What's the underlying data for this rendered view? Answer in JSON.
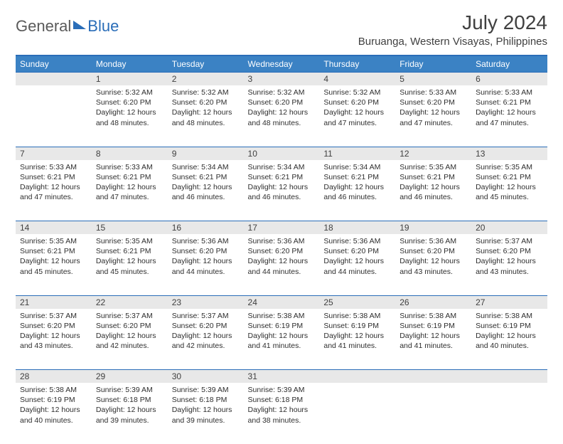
{
  "brand": {
    "part1": "General",
    "part2": "Blue"
  },
  "title": "July 2024",
  "location": "Buruanga, Western Visayas, Philippines",
  "colors": {
    "header_bg": "#3b82c4",
    "header_border": "#2a6db8",
    "daynum_bg": "#e8e8e8",
    "text": "#404040"
  },
  "weekdays": [
    "Sunday",
    "Monday",
    "Tuesday",
    "Wednesday",
    "Thursday",
    "Friday",
    "Saturday"
  ],
  "weeks": [
    [
      null,
      {
        "n": "1",
        "sr": "5:32 AM",
        "ss": "6:20 PM",
        "dl": "12 hours and 48 minutes."
      },
      {
        "n": "2",
        "sr": "5:32 AM",
        "ss": "6:20 PM",
        "dl": "12 hours and 48 minutes."
      },
      {
        "n": "3",
        "sr": "5:32 AM",
        "ss": "6:20 PM",
        "dl": "12 hours and 48 minutes."
      },
      {
        "n": "4",
        "sr": "5:32 AM",
        "ss": "6:20 PM",
        "dl": "12 hours and 47 minutes."
      },
      {
        "n": "5",
        "sr": "5:33 AM",
        "ss": "6:20 PM",
        "dl": "12 hours and 47 minutes."
      },
      {
        "n": "6",
        "sr": "5:33 AM",
        "ss": "6:21 PM",
        "dl": "12 hours and 47 minutes."
      }
    ],
    [
      {
        "n": "7",
        "sr": "5:33 AM",
        "ss": "6:21 PM",
        "dl": "12 hours and 47 minutes."
      },
      {
        "n": "8",
        "sr": "5:33 AM",
        "ss": "6:21 PM",
        "dl": "12 hours and 47 minutes."
      },
      {
        "n": "9",
        "sr": "5:34 AM",
        "ss": "6:21 PM",
        "dl": "12 hours and 46 minutes."
      },
      {
        "n": "10",
        "sr": "5:34 AM",
        "ss": "6:21 PM",
        "dl": "12 hours and 46 minutes."
      },
      {
        "n": "11",
        "sr": "5:34 AM",
        "ss": "6:21 PM",
        "dl": "12 hours and 46 minutes."
      },
      {
        "n": "12",
        "sr": "5:35 AM",
        "ss": "6:21 PM",
        "dl": "12 hours and 46 minutes."
      },
      {
        "n": "13",
        "sr": "5:35 AM",
        "ss": "6:21 PM",
        "dl": "12 hours and 45 minutes."
      }
    ],
    [
      {
        "n": "14",
        "sr": "5:35 AM",
        "ss": "6:21 PM",
        "dl": "12 hours and 45 minutes."
      },
      {
        "n": "15",
        "sr": "5:35 AM",
        "ss": "6:21 PM",
        "dl": "12 hours and 45 minutes."
      },
      {
        "n": "16",
        "sr": "5:36 AM",
        "ss": "6:20 PM",
        "dl": "12 hours and 44 minutes."
      },
      {
        "n": "17",
        "sr": "5:36 AM",
        "ss": "6:20 PM",
        "dl": "12 hours and 44 minutes."
      },
      {
        "n": "18",
        "sr": "5:36 AM",
        "ss": "6:20 PM",
        "dl": "12 hours and 44 minutes."
      },
      {
        "n": "19",
        "sr": "5:36 AM",
        "ss": "6:20 PM",
        "dl": "12 hours and 43 minutes."
      },
      {
        "n": "20",
        "sr": "5:37 AM",
        "ss": "6:20 PM",
        "dl": "12 hours and 43 minutes."
      }
    ],
    [
      {
        "n": "21",
        "sr": "5:37 AM",
        "ss": "6:20 PM",
        "dl": "12 hours and 43 minutes."
      },
      {
        "n": "22",
        "sr": "5:37 AM",
        "ss": "6:20 PM",
        "dl": "12 hours and 42 minutes."
      },
      {
        "n": "23",
        "sr": "5:37 AM",
        "ss": "6:20 PM",
        "dl": "12 hours and 42 minutes."
      },
      {
        "n": "24",
        "sr": "5:38 AM",
        "ss": "6:19 PM",
        "dl": "12 hours and 41 minutes."
      },
      {
        "n": "25",
        "sr": "5:38 AM",
        "ss": "6:19 PM",
        "dl": "12 hours and 41 minutes."
      },
      {
        "n": "26",
        "sr": "5:38 AM",
        "ss": "6:19 PM",
        "dl": "12 hours and 41 minutes."
      },
      {
        "n": "27",
        "sr": "5:38 AM",
        "ss": "6:19 PM",
        "dl": "12 hours and 40 minutes."
      }
    ],
    [
      {
        "n": "28",
        "sr": "5:38 AM",
        "ss": "6:19 PM",
        "dl": "12 hours and 40 minutes."
      },
      {
        "n": "29",
        "sr": "5:39 AM",
        "ss": "6:18 PM",
        "dl": "12 hours and 39 minutes."
      },
      {
        "n": "30",
        "sr": "5:39 AM",
        "ss": "6:18 PM",
        "dl": "12 hours and 39 minutes."
      },
      {
        "n": "31",
        "sr": "5:39 AM",
        "ss": "6:18 PM",
        "dl": "12 hours and 38 minutes."
      },
      null,
      null,
      null
    ]
  ]
}
